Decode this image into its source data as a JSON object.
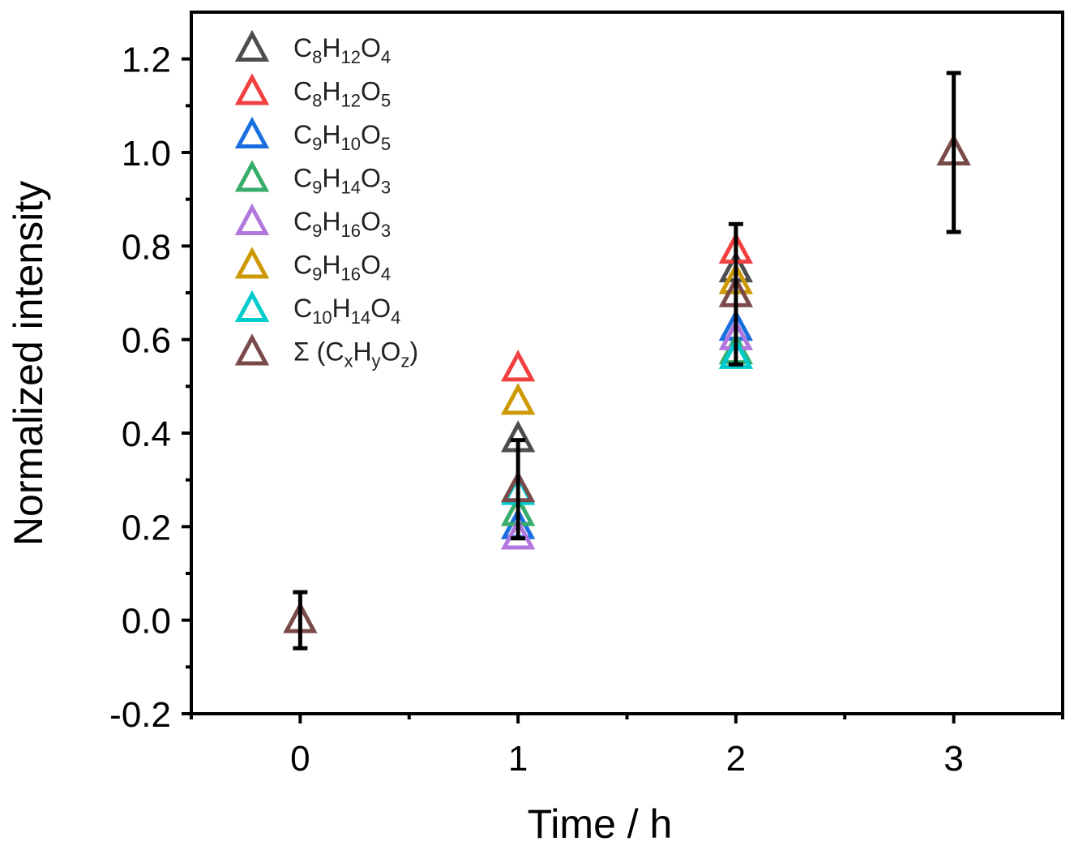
{
  "chart_data": {
    "type": "scatter",
    "xlabel": "Time / h",
    "ylabel": "Normalized intensity",
    "xlim": [
      -0.5,
      3.5
    ],
    "ylim": [
      -0.2,
      1.3
    ],
    "xticks": [
      "0",
      "1",
      "2",
      "3"
    ],
    "yticks": [
      "-0.2",
      "0.0",
      "0.2",
      "0.4",
      "0.6",
      "0.8",
      "1.0",
      "1.2"
    ],
    "grid": false,
    "legend_position": "top-left",
    "marker": "open-triangle",
    "series": [
      {
        "name": "C8H12O4",
        "parts": [
          [
            "C",
            ""
          ],
          [
            "8",
            "sub"
          ],
          [
            "H",
            ""
          ],
          [
            "12",
            "sub"
          ],
          [
            "O",
            ""
          ],
          [
            "4",
            "sub"
          ]
        ],
        "color": "#4d4d4d",
        "x": [
          1,
          2
        ],
        "y": [
          0.387,
          0.75
        ]
      },
      {
        "name": "C8H12O5",
        "parts": [
          [
            "C",
            ""
          ],
          [
            "8",
            "sub"
          ],
          [
            "H",
            ""
          ],
          [
            "12",
            "sub"
          ],
          [
            "O",
            ""
          ],
          [
            "5",
            "sub"
          ]
        ],
        "color": "#f24040",
        "x": [
          1,
          2
        ],
        "y": [
          0.538,
          0.79
        ]
      },
      {
        "name": "C9H10O5",
        "parts": [
          [
            "C",
            ""
          ],
          [
            "9",
            "sub"
          ],
          [
            "H",
            ""
          ],
          [
            "10",
            "sub"
          ],
          [
            "O",
            ""
          ],
          [
            "5",
            "sub"
          ]
        ],
        "color": "#1a6fdf",
        "x": [
          1,
          2
        ],
        "y": [
          0.201,
          0.625
        ]
      },
      {
        "name": "C9H14O3",
        "parts": [
          [
            "C",
            ""
          ],
          [
            "9",
            "sub"
          ],
          [
            "H",
            ""
          ],
          [
            "14",
            "sub"
          ],
          [
            "O",
            ""
          ],
          [
            "3",
            "sub"
          ]
        ],
        "color": "#37ad6b",
        "x": [
          1,
          2
        ],
        "y": [
          0.229,
          0.575
        ]
      },
      {
        "name": "C9H16O3",
        "parts": [
          [
            "C",
            ""
          ],
          [
            "9",
            "sub"
          ],
          [
            "H",
            ""
          ],
          [
            "16",
            "sub"
          ],
          [
            "O",
            ""
          ],
          [
            "3",
            "sub"
          ]
        ],
        "color": "#b177de",
        "x": [
          1,
          2
        ],
        "y": [
          0.179,
          0.605
        ]
      },
      {
        "name": "C9H16O4",
        "parts": [
          [
            "C",
            ""
          ],
          [
            "9",
            "sub"
          ],
          [
            "H",
            ""
          ],
          [
            "16",
            "sub"
          ],
          [
            "O",
            ""
          ],
          [
            "4",
            "sub"
          ]
        ],
        "color": "#cc9900",
        "x": [
          1,
          2
        ],
        "y": [
          0.467,
          0.725
        ]
      },
      {
        "name": "C10H14O4",
        "parts": [
          [
            "C",
            ""
          ],
          [
            "10",
            "sub"
          ],
          [
            "H",
            ""
          ],
          [
            "14",
            "sub"
          ],
          [
            "O",
            ""
          ],
          [
            "4",
            "sub"
          ]
        ],
        "color": "#00cbcc",
        "x": [
          1,
          2
        ],
        "y": [
          0.274,
          0.565
        ]
      },
      {
        "name": "Σ (CxHyOz)",
        "parts": [
          [
            "Σ (C",
            ""
          ],
          [
            "x",
            "sub"
          ],
          [
            "H",
            ""
          ],
          [
            "y",
            "sub"
          ],
          [
            "O",
            ""
          ],
          [
            "z",
            "sub"
          ],
          [
            ")",
            ""
          ]
        ],
        "color": "#7a4a4a",
        "x": [
          0,
          1,
          2,
          3
        ],
        "y": [
          0.0,
          0.28,
          0.697,
          1.0
        ],
        "yerr": [
          0.06,
          0.105,
          0.15,
          0.17
        ]
      }
    ]
  }
}
